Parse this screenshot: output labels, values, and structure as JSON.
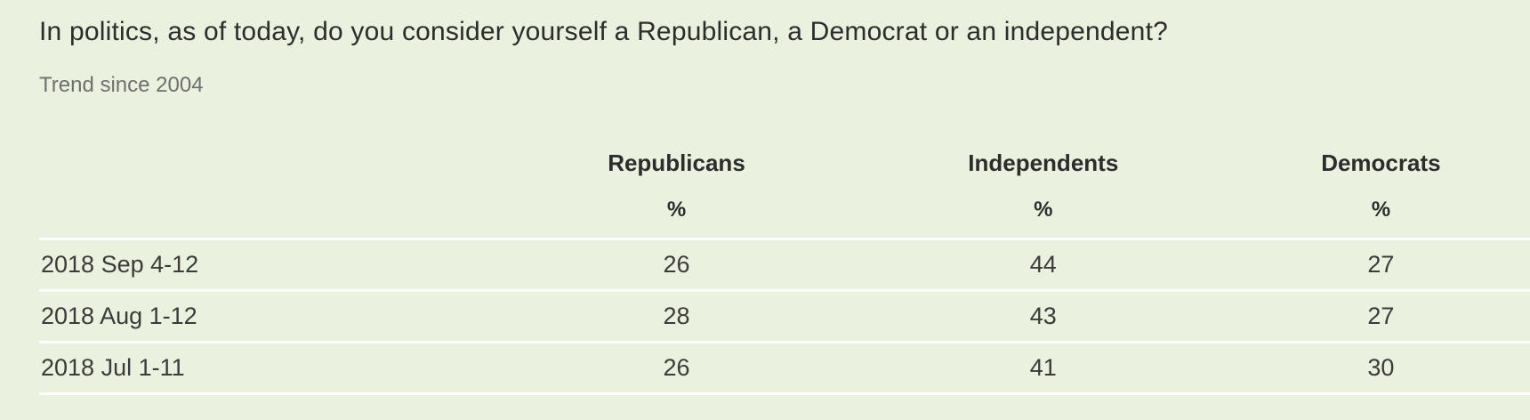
{
  "question": {
    "title": "In politics, as of today, do you consider yourself a Republican, a Democrat or an independent?",
    "subtitle": "Trend since 2004"
  },
  "chart_data": {
    "type": "table",
    "title": "In politics, as of today, do you consider yourself a Republican, a Democrat or an independent?",
    "subtitle": "Trend since 2004",
    "columns": [
      "",
      "Republicans",
      "Independents",
      "Democrats"
    ],
    "units_row": [
      "",
      "%",
      "%",
      "%"
    ],
    "rows": [
      [
        "2018 Sep 4-12",
        "26",
        "44",
        "27"
      ],
      [
        "2018 Aug 1-12",
        "28",
        "43",
        "27"
      ],
      [
        "2018 Jul 1-11",
        "26",
        "41",
        "30"
      ]
    ],
    "layout_hints": {
      "date_column_align": "left",
      "value_columns_align": "center",
      "row_separator": "white horizontal lines",
      "fourth_row_partially_cut_off": true
    }
  },
  "colors": {
    "background": "#eaf1de",
    "separator": "#ffffff",
    "title_text": "#2d2d2d",
    "subtitle_text": "#6f6f6f",
    "header_text": "#2d2d2d",
    "data_text": "#3b3b3b"
  }
}
